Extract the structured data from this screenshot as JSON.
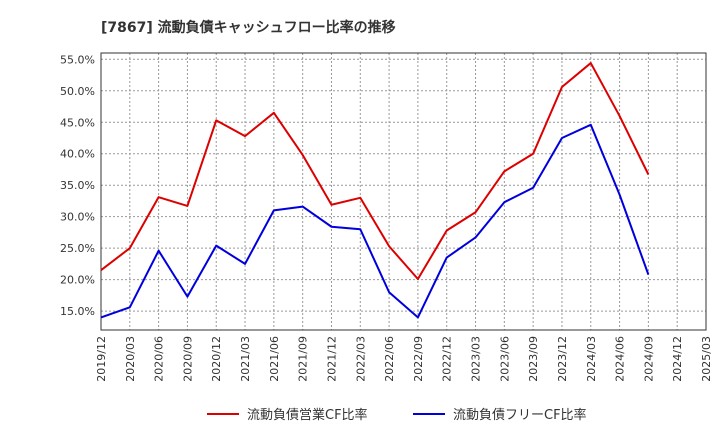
{
  "chart_data": {
    "type": "line",
    "title": "[7867]  流動負債キャッシュフロー比率の推移",
    "xlabel": "",
    "ylabel": "",
    "x": [
      "2019/12",
      "2020/03",
      "2020/06",
      "2020/09",
      "2020/12",
      "2021/03",
      "2021/06",
      "2021/09",
      "2021/12",
      "2022/03",
      "2022/06",
      "2022/09",
      "2022/12",
      "2023/03",
      "2023/06",
      "2023/09",
      "2023/12",
      "2024/03",
      "2024/06",
      "2024/09",
      "2024/12",
      "2025/03"
    ],
    "y_ticks": [
      "15.0%",
      "20.0%",
      "25.0%",
      "30.0%",
      "35.0%",
      "40.0%",
      "45.0%",
      "50.0%",
      "55.0%"
    ],
    "ylim": [
      12.0,
      56.0
    ],
    "grid": true,
    "legend_position": "bottom",
    "series": [
      {
        "name": "流動負債営業CF比率",
        "color": "#dd0000",
        "values": [
          21.5,
          25.0,
          33.1,
          31.7,
          45.3,
          42.8,
          46.5,
          39.8,
          31.9,
          33.0,
          25.3,
          20.1,
          27.8,
          30.7,
          37.2,
          40.0,
          50.6,
          54.4,
          46.0,
          36.7,
          null,
          null
        ]
      },
      {
        "name": "流動負債フリーCF比率",
        "color": "#0000dd",
        "values": [
          14.0,
          15.6,
          24.6,
          17.3,
          25.4,
          22.5,
          31.0,
          31.6,
          28.4,
          28.0,
          18.0,
          14.0,
          23.5,
          26.7,
          32.3,
          34.6,
          42.5,
          44.6,
          33.5,
          20.8,
          null,
          null
        ]
      }
    ]
  }
}
